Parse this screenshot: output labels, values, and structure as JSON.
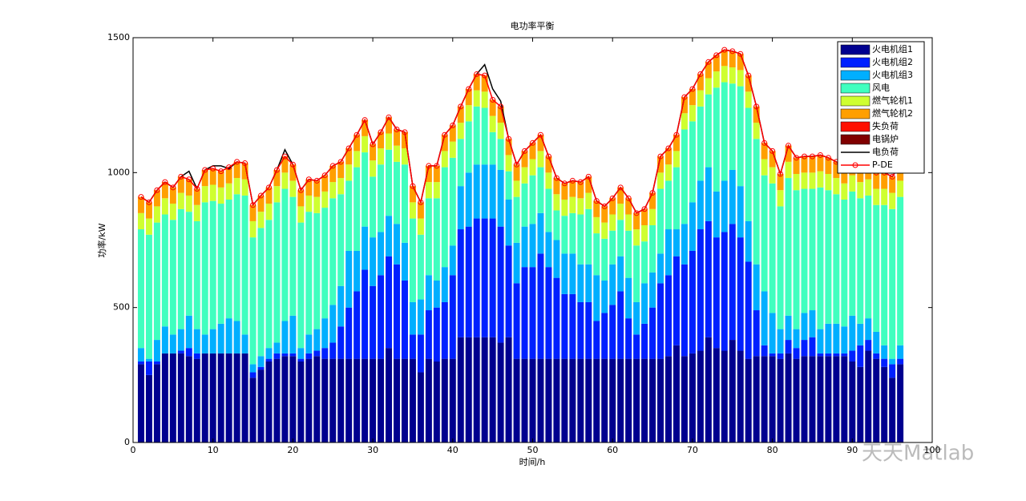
{
  "chart_data": {
    "type": "stacked_bar_line",
    "title": "电功率平衡",
    "x_label": "时间/h",
    "y_label": "功率/kW",
    "watermark": "天天Matlab",
    "x": [
      1,
      2,
      3,
      4,
      5,
      6,
      7,
      8,
      9,
      10,
      11,
      12,
      13,
      14,
      15,
      16,
      17,
      18,
      19,
      20,
      21,
      22,
      23,
      24,
      25,
      26,
      27,
      28,
      29,
      30,
      31,
      32,
      33,
      34,
      35,
      36,
      37,
      38,
      39,
      40,
      41,
      42,
      43,
      44,
      45,
      46,
      47,
      48,
      49,
      50,
      51,
      52,
      53,
      54,
      55,
      56,
      57,
      58,
      59,
      60,
      61,
      62,
      63,
      64,
      65,
      66,
      67,
      68,
      69,
      70,
      71,
      72,
      73,
      74,
      75,
      76,
      77,
      78,
      79,
      80,
      81,
      82,
      83,
      84,
      85,
      86,
      87,
      88,
      89,
      90,
      91,
      92,
      93,
      94,
      95,
      96
    ],
    "xlim": [
      0,
      100
    ],
    "xticks": [
      0,
      10,
      20,
      30,
      40,
      50,
      60,
      70,
      80,
      90,
      100
    ],
    "ylim": [
      0,
      1500
    ],
    "yticks": [
      0,
      500,
      1000,
      1500
    ],
    "legend": "upper right",
    "series": [
      {
        "name": "火电机组1",
        "color": "#00008f",
        "values": [
          290,
          250,
          290,
          330,
          330,
          330,
          320,
          310,
          330,
          330,
          330,
          330,
          330,
          330,
          240,
          270,
          300,
          310,
          320,
          320,
          300,
          310,
          320,
          310,
          310,
          310,
          310,
          310,
          310,
          310,
          310,
          350,
          310,
          310,
          310,
          260,
          310,
          300,
          310,
          310,
          390,
          390,
          390,
          390,
          390,
          370,
          390,
          310,
          310,
          310,
          310,
          310,
          310,
          310,
          310,
          310,
          310,
          310,
          310,
          310,
          310,
          310,
          310,
          310,
          310,
          310,
          320,
          360,
          320,
          330,
          340,
          390,
          350,
          340,
          380,
          340,
          310,
          320,
          320,
          320,
          310,
          330,
          310,
          320,
          320,
          320,
          320,
          320,
          320,
          300,
          280,
          340,
          310,
          280,
          240,
          290
        ]
      },
      {
        "name": "火电机组2",
        "color": "#0020ff",
        "values": [
          10,
          50,
          10,
          0,
          0,
          10,
          30,
          20,
          0,
          0,
          0,
          0,
          0,
          0,
          20,
          10,
          10,
          20,
          10,
          10,
          10,
          20,
          20,
          40,
          60,
          120,
          190,
          250,
          330,
          270,
          310,
          340,
          350,
          290,
          90,
          140,
          180,
          200,
          210,
          310,
          400,
          410,
          440,
          440,
          440,
          430,
          340,
          280,
          340,
          340,
          390,
          340,
          300,
          240,
          240,
          210,
          210,
          140,
          170,
          200,
          250,
          150,
          90,
          130,
          190,
          280,
          300,
          330,
          340,
          380,
          450,
          430,
          410,
          440,
          430,
          420,
          360,
          170,
          40,
          10,
          20,
          50,
          40,
          60,
          70,
          10,
          10,
          10,
          10,
          40,
          80,
          40,
          20,
          30,
          50,
          20
        ]
      },
      {
        "name": "火电机组3",
        "color": "#00afff",
        "values": [
          50,
          10,
          80,
          100,
          70,
          80,
          120,
          90,
          70,
          90,
          110,
          130,
          120,
          70,
          30,
          40,
          40,
          40,
          120,
          140,
          40,
          70,
          80,
          110,
          140,
          150,
          210,
          150,
          160,
          180,
          160,
          150,
          150,
          140,
          120,
          130,
          130,
          100,
          130,
          110,
          160,
          200,
          200,
          200,
          200,
          210,
          170,
          150,
          150,
          160,
          150,
          130,
          140,
          150,
          150,
          140,
          140,
          170,
          120,
          150,
          130,
          150,
          120,
          150,
          130,
          110,
          170,
          100,
          150,
          180,
          180,
          200,
          170,
          190,
          200,
          190,
          150,
          170,
          200,
          150,
          90,
          90,
          70,
          100,
          100,
          90,
          110,
          110,
          100,
          130,
          80,
          80,
          80,
          50,
          20,
          50
        ]
      },
      {
        "name": "风电",
        "color": "#40ffbf",
        "values": [
          440,
          460,
          435,
          415,
          425,
          445,
          385,
          400,
          490,
          475,
          445,
          440,
          470,
          515,
          470,
          475,
          475,
          520,
          490,
          440,
          465,
          455,
          430,
          410,
          395,
          340,
          260,
          310,
          275,
          225,
          250,
          245,
          230,
          290,
          310,
          240,
          285,
          305,
          370,
          325,
          175,
          190,
          215,
          210,
          120,
          115,
          105,
          170,
          160,
          180,
          170,
          160,
          110,
          140,
          150,
          185,
          205,
          155,
          155,
          125,
          135,
          175,
          210,
          155,
          175,
          240,
          180,
          230,
          350,
          300,
          275,
          270,
          385,
          365,
          320,
          370,
          420,
          465,
          430,
          480,
          455,
          510,
          515,
          460,
          450,
          525,
          495,
          480,
          470,
          460,
          465,
          455,
          470,
          520,
          555,
          550
        ]
      },
      {
        "name": "燃气轮机1",
        "color": "#cfff30",
        "values": [
          60,
          60,
          60,
          60,
          60,
          60,
          60,
          60,
          60,
          60,
          60,
          60,
          60,
          60,
          60,
          60,
          60,
          60,
          60,
          60,
          60,
          60,
          60,
          60,
          60,
          60,
          60,
          60,
          60,
          60,
          60,
          60,
          60,
          60,
          60,
          60,
          60,
          60,
          60,
          60,
          60,
          60,
          60,
          60,
          60,
          60,
          60,
          60,
          60,
          60,
          60,
          60,
          60,
          60,
          60,
          60,
          60,
          60,
          60,
          60,
          60,
          60,
          60,
          60,
          60,
          60,
          60,
          60,
          60,
          60,
          60,
          60,
          60,
          60,
          60,
          60,
          60,
          60,
          60,
          60,
          60,
          60,
          60,
          60,
          60,
          60,
          60,
          60,
          60,
          60,
          60,
          60,
          60,
          60,
          60,
          60
        ]
      },
      {
        "name": "燃气轮机2",
        "color": "#ff9f00",
        "values": [
          60,
          60,
          60,
          60,
          60,
          60,
          60,
          60,
          60,
          60,
          60,
          60,
          60,
          60,
          60,
          60,
          60,
          60,
          60,
          60,
          60,
          60,
          60,
          60,
          60,
          60,
          60,
          60,
          60,
          60,
          60,
          60,
          60,
          60,
          60,
          60,
          60,
          60,
          60,
          60,
          60,
          60,
          60,
          60,
          60,
          60,
          60,
          60,
          60,
          60,
          60,
          60,
          60,
          60,
          60,
          60,
          60,
          60,
          60,
          60,
          60,
          60,
          60,
          60,
          60,
          60,
          60,
          60,
          60,
          60,
          60,
          60,
          60,
          60,
          60,
          60,
          60,
          60,
          60,
          60,
          60,
          60,
          60,
          60,
          60,
          60,
          60,
          60,
          60,
          60,
          60,
          60,
          60,
          60,
          60,
          60
        ]
      },
      {
        "name": "失负荷",
        "color": "#ff1000",
        "values": [
          0,
          0,
          0,
          0,
          0,
          0,
          0,
          0,
          0,
          0,
          0,
          0,
          0,
          0,
          0,
          0,
          0,
          0,
          0,
          0,
          0,
          0,
          0,
          0,
          0,
          0,
          0,
          0,
          0,
          0,
          0,
          0,
          0,
          0,
          0,
          0,
          0,
          0,
          0,
          0,
          0,
          0,
          0,
          0,
          0,
          0,
          0,
          0,
          0,
          0,
          0,
          0,
          0,
          0,
          0,
          0,
          0,
          0,
          0,
          0,
          0,
          0,
          0,
          0,
          0,
          0,
          0,
          0,
          0,
          0,
          0,
          0,
          0,
          0,
          0,
          0,
          0,
          0,
          0,
          0,
          0,
          0,
          0,
          0,
          0,
          0,
          0,
          0,
          0,
          0,
          0,
          0,
          0,
          0,
          0,
          0
        ]
      },
      {
        "name": "电锅炉",
        "color": "#800000",
        "values": [
          0,
          0,
          0,
          0,
          0,
          0,
          0,
          0,
          0,
          0,
          0,
          0,
          0,
          0,
          0,
          0,
          0,
          0,
          0,
          0,
          0,
          0,
          0,
          0,
          0,
          0,
          0,
          0,
          0,
          0,
          0,
          0,
          0,
          0,
          0,
          0,
          0,
          0,
          0,
          0,
          0,
          0,
          0,
          0,
          0,
          0,
          0,
          0,
          0,
          0,
          0,
          0,
          0,
          0,
          0,
          0,
          0,
          0,
          0,
          0,
          0,
          0,
          0,
          0,
          0,
          0,
          0,
          0,
          0,
          0,
          0,
          0,
          0,
          0,
          0,
          0,
          0,
          0,
          0,
          0,
          0,
          0,
          0,
          0,
          0,
          0,
          0,
          0,
          0,
          0,
          0,
          0,
          0,
          0,
          0,
          0
        ]
      }
    ],
    "line_series": [
      {
        "name": "电负荷",
        "color": "#000000",
        "marker": false,
        "values": [
          910,
          890,
          935,
          965,
          945,
          985,
          1005,
          940,
          1010,
          1025,
          1025,
          1015,
          1040,
          1035,
          880,
          915,
          945,
          1010,
          1085,
          1030,
          935,
          975,
          970,
          990,
          1025,
          1040,
          1090,
          1140,
          1195,
          1105,
          1150,
          1205,
          1160,
          1150,
          950,
          890,
          1025,
          1025,
          1140,
          1175,
          1245,
          1310,
          1365,
          1400,
          1310,
          1265,
          1125,
          1030,
          1080,
          1110,
          1140,
          1060,
          980,
          960,
          970,
          965,
          985,
          895,
          875,
          905,
          945,
          905,
          850,
          865,
          925,
          1060,
          1090,
          1140,
          1280,
          1310,
          1365,
          1410,
          1435,
          1455,
          1450,
          1440,
          1360,
          1245,
          1110,
          1080,
          995,
          1100,
          1055,
          1060,
          1060,
          1065,
          1055,
          1040,
          1020,
          1050,
          1025,
          1035,
          1000,
          1000,
          985,
          1030
        ]
      },
      {
        "name": "P-DE",
        "color": "#ff0000",
        "marker": true,
        "values": [
          910,
          890,
          935,
          965,
          945,
          985,
          975,
          940,
          1010,
          1015,
          1005,
          1020,
          1040,
          1035,
          880,
          915,
          945,
          1010,
          1060,
          1030,
          935,
          975,
          970,
          990,
          1025,
          1040,
          1090,
          1140,
          1195,
          1105,
          1150,
          1205,
          1160,
          1150,
          950,
          890,
          1025,
          1025,
          1140,
          1175,
          1245,
          1310,
          1365,
          1360,
          1270,
          1245,
          1125,
          1030,
          1080,
          1110,
          1140,
          1060,
          980,
          960,
          970,
          965,
          985,
          895,
          875,
          905,
          945,
          905,
          850,
          865,
          925,
          1060,
          1090,
          1140,
          1280,
          1310,
          1365,
          1410,
          1435,
          1455,
          1450,
          1440,
          1360,
          1245,
          1110,
          1080,
          995,
          1100,
          1055,
          1060,
          1060,
          1065,
          1055,
          1040,
          1020,
          1050,
          1025,
          1035,
          1000,
          1000,
          985,
          1030
        ]
      }
    ]
  }
}
